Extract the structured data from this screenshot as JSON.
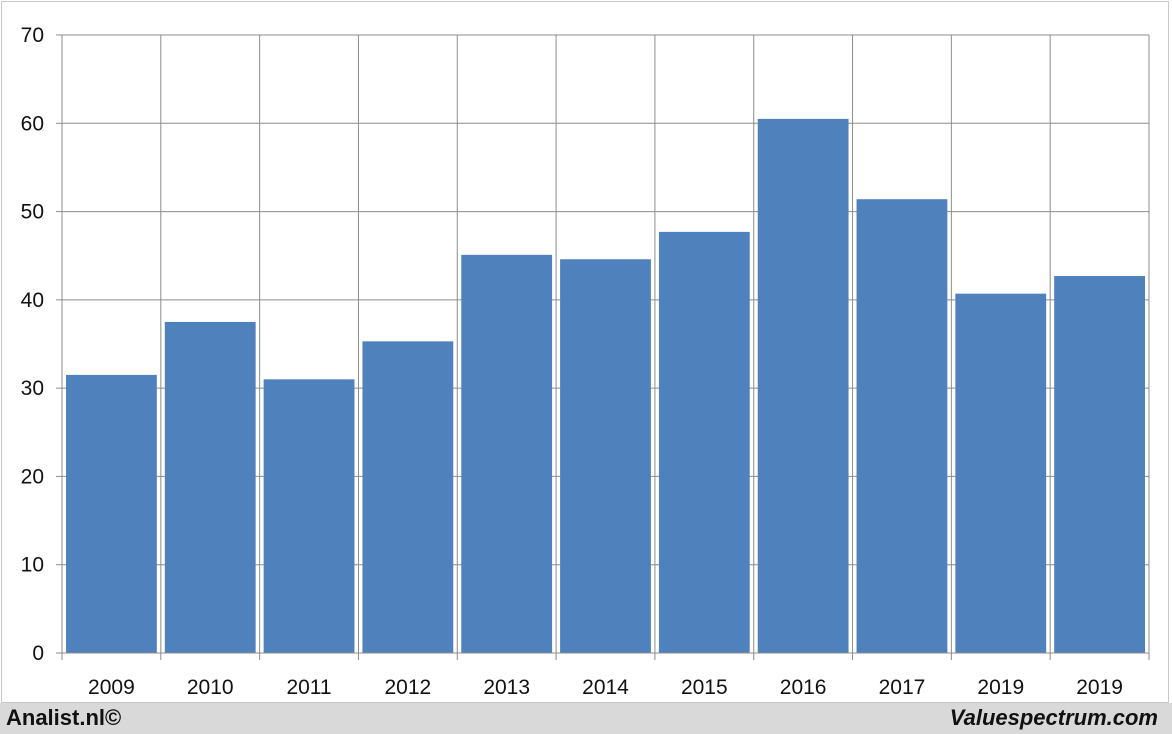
{
  "footer": {
    "left_text": "Analist.nl©",
    "right_text": "Valuespectrum.com"
  },
  "colors": {
    "bar": "#4f81bd",
    "grid": "#8c8c8c",
    "background": "#ffffff",
    "footer_bg": "#d9d9d9"
  },
  "chart_data": {
    "type": "bar",
    "categories": [
      "2009",
      "2010",
      "2011",
      "2012",
      "2013",
      "2014",
      "2015",
      "2016",
      "2017",
      "2019",
      "2019"
    ],
    "values": [
      31.5,
      37.5,
      31.0,
      35.3,
      45.1,
      44.6,
      47.7,
      60.5,
      51.4,
      40.7,
      42.7
    ],
    "ylim": [
      0,
      70
    ],
    "yticks": [
      "0",
      "10",
      "20",
      "30",
      "40",
      "50",
      "60",
      "70"
    ],
    "title": "",
    "xlabel": "",
    "ylabel": "",
    "grid": true,
    "legend": "none"
  }
}
